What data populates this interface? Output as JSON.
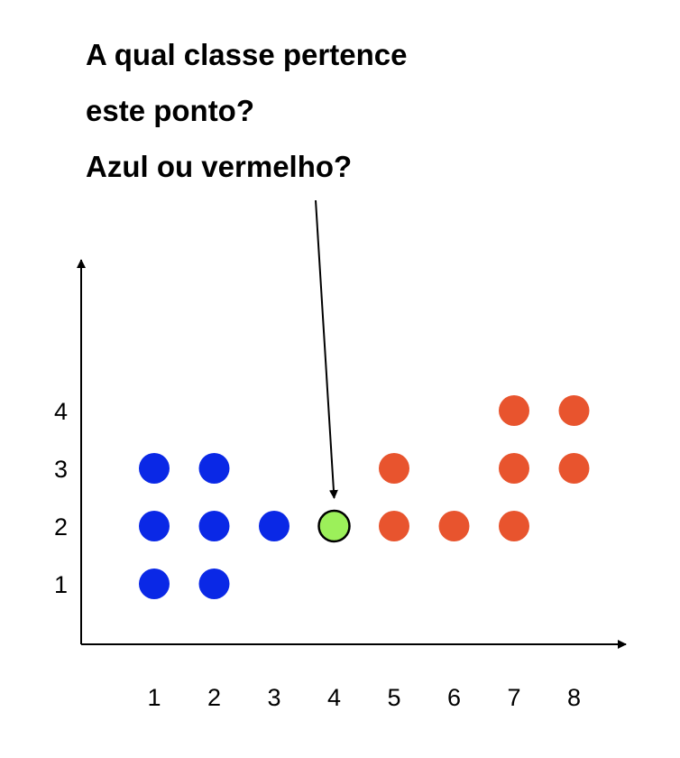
{
  "question": {
    "lines": [
      "A qual classe pertence",
      "este ponto?",
      "Azul ou vermelho?"
    ]
  },
  "chart_data": {
    "type": "scatter",
    "title": "",
    "xlabel": "",
    "ylabel": "",
    "x_ticks": [
      "1",
      "2",
      "3",
      "4",
      "5",
      "6",
      "7",
      "8"
    ],
    "y_ticks": [
      "1",
      "2",
      "3",
      "4"
    ],
    "xlim": [
      1,
      8
    ],
    "ylim": [
      1,
      4
    ],
    "grid": false,
    "legend": "none",
    "series": [
      {
        "color": "#0a28e6",
        "points": [
          {
            "x": 1,
            "y": 1
          },
          {
            "x": 2,
            "y": 1
          },
          {
            "x": 1,
            "y": 2
          },
          {
            "x": 2,
            "y": 2
          },
          {
            "x": 3,
            "y": 2
          },
          {
            "x": 1,
            "y": 3
          },
          {
            "x": 2,
            "y": 3
          }
        ]
      },
      {
        "color": "#e8542e",
        "points": [
          {
            "x": 5,
            "y": 2
          },
          {
            "x": 6,
            "y": 2
          },
          {
            "x": 7,
            "y": 2
          },
          {
            "x": 5,
            "y": 3
          },
          {
            "x": 7,
            "y": 3
          },
          {
            "x": 8,
            "y": 3
          },
          {
            "x": 7,
            "y": 4
          },
          {
            "x": 8,
            "y": 4
          }
        ]
      },
      {
        "color": "#9cf05a",
        "outlined": true,
        "points": [
          {
            "x": 4,
            "y": 2
          }
        ]
      }
    ],
    "annotation": {
      "target": {
        "x": 4,
        "y": 2
      },
      "points_from": "question"
    }
  }
}
